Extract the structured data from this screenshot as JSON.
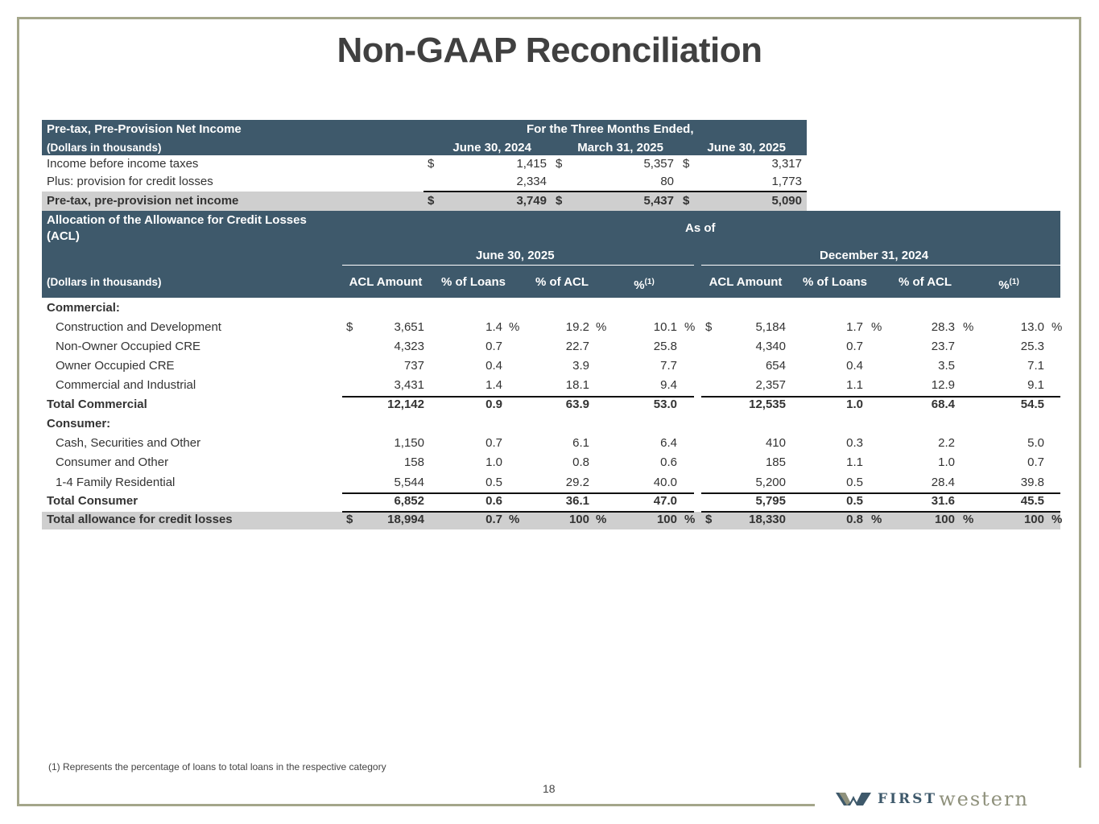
{
  "title": "Non-GAAP Reconciliation",
  "pptp": {
    "heading": "Pre-tax, Pre-Provision Net Income",
    "subheading": "(Dollars in thousands)",
    "period_header": "For the Three Months Ended,",
    "columns": [
      "June 30, 2024",
      "March 31, 2025",
      "June 30, 2025"
    ],
    "rows": [
      {
        "label": "Income before income taxes",
        "values": [
          "1,415",
          "5,357",
          "3,317"
        ],
        "dollar": true
      },
      {
        "label": "Plus: provision for credit losses",
        "values": [
          "2,334",
          "80",
          "1,773"
        ],
        "dollar": false
      },
      {
        "label": "Pre-tax, pre-provision net income",
        "values": [
          "3,749",
          "5,437",
          "5,090"
        ],
        "dollar": true,
        "total": true
      }
    ]
  },
  "acl": {
    "heading": "Allocation of the Allowance for Credit Losses (ACL)",
    "as_of": "As of",
    "subheading": "(Dollars in thousands)",
    "periods": [
      "June 30, 2025",
      "December 31, 2024"
    ],
    "columns": [
      "ACL Amount",
      "% of Loans",
      "% of ACL",
      "%"
    ],
    "footnote_mark": "(1)",
    "rows": [
      {
        "label": "Commercial:",
        "type": "section"
      },
      {
        "label": "Construction and Development",
        "type": "item",
        "dollar": true,
        "pct": true,
        "a": [
          "3,651",
          "1.4",
          "19.2",
          "10.1"
        ],
        "b": [
          "5,184",
          "1.7",
          "28.3",
          "13.0"
        ]
      },
      {
        "label": "Non-Owner Occupied CRE",
        "type": "item",
        "a": [
          "4,323",
          "0.7",
          "22.7",
          "25.8"
        ],
        "b": [
          "4,340",
          "0.7",
          "23.7",
          "25.3"
        ]
      },
      {
        "label": "Owner Occupied CRE",
        "type": "item",
        "a": [
          "737",
          "0.4",
          "3.9",
          "7.7"
        ],
        "b": [
          "654",
          "0.4",
          "3.5",
          "7.1"
        ]
      },
      {
        "label": "Commercial and Industrial",
        "type": "item",
        "a": [
          "3,431",
          "1.4",
          "18.1",
          "9.4"
        ],
        "b": [
          "2,357",
          "1.1",
          "12.9",
          "9.1"
        ]
      },
      {
        "label": "Total Commercial",
        "type": "subtotal",
        "a": [
          "12,142",
          "0.9",
          "63.9",
          "53.0"
        ],
        "b": [
          "12,535",
          "1.0",
          "68.4",
          "54.5"
        ]
      },
      {
        "label": "Consumer:",
        "type": "section"
      },
      {
        "label": "Cash, Securities and Other",
        "type": "item",
        "a": [
          "1,150",
          "0.7",
          "6.1",
          "6.4"
        ],
        "b": [
          "410",
          "0.3",
          "2.2",
          "5.0"
        ]
      },
      {
        "label": "Consumer and Other",
        "type": "item",
        "a": [
          "158",
          "1.0",
          "0.8",
          "0.6"
        ],
        "b": [
          "185",
          "1.1",
          "1.0",
          "0.7"
        ]
      },
      {
        "label": "1-4 Family Residential",
        "type": "item",
        "a": [
          "5,544",
          "0.5",
          "29.2",
          "40.0"
        ],
        "b": [
          "5,200",
          "0.5",
          "28.4",
          "39.8"
        ]
      },
      {
        "label": "Total Consumer",
        "type": "subtotal",
        "a": [
          "6,852",
          "0.6",
          "36.1",
          "47.0"
        ],
        "b": [
          "5,795",
          "0.5",
          "31.6",
          "45.5"
        ]
      },
      {
        "label": "Total allowance for credit losses",
        "type": "total",
        "dollar": true,
        "pct": true,
        "a": [
          "18,994",
          "0.7",
          "100",
          "100"
        ],
        "b": [
          "18,330",
          "0.8",
          "100",
          "100"
        ]
      }
    ]
  },
  "footnote": "(1)  Represents the percentage of loans to total loans in the respective category",
  "page_number": "18",
  "logo": {
    "first": "FIRST",
    "western": "western"
  },
  "colors": {
    "header": "#3e596b",
    "frame": "#a4a68a",
    "total_row": "#cfcfcf"
  }
}
